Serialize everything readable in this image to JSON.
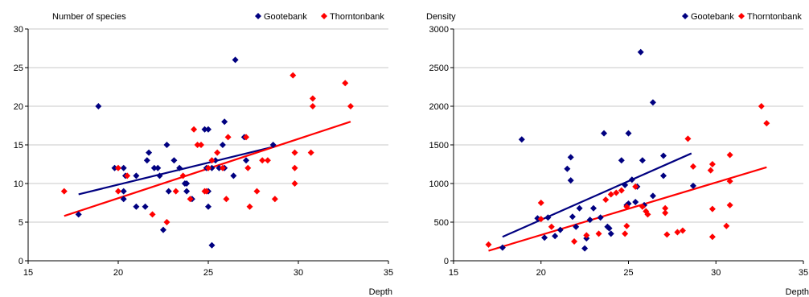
{
  "chart_data": [
    {
      "type": "scatter",
      "title": "Number of species",
      "xlabel": "Depth",
      "ylabel": "Number of species",
      "xlim": [
        15,
        35
      ],
      "ylim": [
        0,
        30
      ],
      "xticks": [
        15,
        20,
        25,
        30,
        35
      ],
      "yticks": [
        0,
        5,
        10,
        15,
        20,
        25,
        30
      ],
      "grid": "horizontal",
      "legend_position": "top-right",
      "series": [
        {
          "name": "Gootebank",
          "color": "#000080",
          "marker": "diamond",
          "points": [
            [
              17.8,
              6
            ],
            [
              18.9,
              20
            ],
            [
              19.8,
              12
            ],
            [
              20.3,
              12
            ],
            [
              20.3,
              9
            ],
            [
              20.3,
              8
            ],
            [
              20.4,
              11
            ],
            [
              21.0,
              11
            ],
            [
              21.0,
              7
            ],
            [
              21.5,
              7
            ],
            [
              21.6,
              13
            ],
            [
              21.7,
              14
            ],
            [
              22.0,
              12
            ],
            [
              22.2,
              12
            ],
            [
              22.3,
              11
            ],
            [
              22.5,
              4
            ],
            [
              22.7,
              15
            ],
            [
              22.8,
              9
            ],
            [
              23.1,
              13
            ],
            [
              23.4,
              12
            ],
            [
              23.7,
              10
            ],
            [
              23.8,
              9
            ],
            [
              23.8,
              10
            ],
            [
              24.1,
              8
            ],
            [
              24.8,
              17
            ],
            [
              25.0,
              17
            ],
            [
              24.9,
              12
            ],
            [
              25.0,
              7
            ],
            [
              25.2,
              12
            ],
            [
              25.4,
              13
            ],
            [
              25.6,
              12
            ],
            [
              25.8,
              15
            ],
            [
              25.9,
              18
            ],
            [
              25.9,
              12
            ],
            [
              26.5,
              26
            ],
            [
              26.4,
              11
            ],
            [
              27.0,
              16
            ],
            [
              27.1,
              13
            ],
            [
              28.6,
              15
            ],
            [
              25.2,
              2
            ],
            [
              25.0,
              9
            ]
          ],
          "trendline": [
            [
              17.8,
              8.6
            ],
            [
              28.7,
              14.8
            ]
          ]
        },
        {
          "name": "Thorntonbank",
          "color": "#ff0000",
          "marker": "diamond",
          "points": [
            [
              17.0,
              9
            ],
            [
              20.0,
              12
            ],
            [
              20.0,
              9
            ],
            [
              20.5,
              11
            ],
            [
              21.9,
              6
            ],
            [
              22.7,
              5
            ],
            [
              23.2,
              9
            ],
            [
              23.6,
              11
            ],
            [
              24.0,
              8
            ],
            [
              24.2,
              17
            ],
            [
              24.4,
              15
            ],
            [
              24.6,
              15
            ],
            [
              24.8,
              9
            ],
            [
              24.9,
              9
            ],
            [
              25.0,
              12
            ],
            [
              25.2,
              13
            ],
            [
              25.5,
              14
            ],
            [
              25.8,
              12
            ],
            [
              26.0,
              8
            ],
            [
              26.1,
              16
            ],
            [
              27.1,
              16
            ],
            [
              27.2,
              12
            ],
            [
              27.3,
              7
            ],
            [
              27.7,
              9
            ],
            [
              28.0,
              13
            ],
            [
              28.3,
              13
            ],
            [
              28.7,
              8
            ],
            [
              29.7,
              24
            ],
            [
              29.8,
              14
            ],
            [
              29.8,
              12
            ],
            [
              29.8,
              10
            ],
            [
              30.7,
              14
            ],
            [
              30.8,
              21
            ],
            [
              30.8,
              20
            ],
            [
              32.6,
              23
            ],
            [
              32.9,
              20
            ]
          ],
          "trendline": [
            [
              17.0,
              5.8
            ],
            [
              32.9,
              18.0
            ]
          ]
        }
      ]
    },
    {
      "type": "scatter",
      "title": "Density",
      "xlabel": "Depth",
      "ylabel": "Density",
      "xlim": [
        15,
        35
      ],
      "ylim": [
        0,
        3000
      ],
      "xticks": [
        15,
        20,
        25,
        30,
        35
      ],
      "yticks": [
        0,
        500,
        1000,
        1500,
        2000,
        2500,
        3000
      ],
      "grid": "horizontal",
      "legend_position": "top-right",
      "series": [
        {
          "name": "Gootebank",
          "color": "#000080",
          "marker": "diamond",
          "points": [
            [
              17.8,
              170
            ],
            [
              18.9,
              1570
            ],
            [
              19.8,
              550
            ],
            [
              20.2,
              300
            ],
            [
              20.4,
              560
            ],
            [
              20.8,
              320
            ],
            [
              21.1,
              400
            ],
            [
              21.5,
              1190
            ],
            [
              21.7,
              1340
            ],
            [
              21.7,
              1040
            ],
            [
              21.8,
              570
            ],
            [
              22.0,
              440
            ],
            [
              22.2,
              680
            ],
            [
              22.5,
              160
            ],
            [
              22.6,
              290
            ],
            [
              22.8,
              530
            ],
            [
              23.0,
              680
            ],
            [
              23.4,
              560
            ],
            [
              23.6,
              1650
            ],
            [
              23.8,
              440
            ],
            [
              23.9,
              420
            ],
            [
              24.0,
              350
            ],
            [
              24.6,
              1300
            ],
            [
              24.8,
              980
            ],
            [
              25.0,
              740
            ],
            [
              25.0,
              1650
            ],
            [
              25.2,
              1050
            ],
            [
              25.5,
              960
            ],
            [
              25.7,
              2700
            ],
            [
              25.8,
              1300
            ],
            [
              25.9,
              720
            ],
            [
              26.4,
              2050
            ],
            [
              26.4,
              840
            ],
            [
              27.0,
              1360
            ],
            [
              27.0,
              1100
            ],
            [
              28.7,
              970
            ],
            [
              24.9,
              720
            ],
            [
              25.4,
              760
            ]
          ],
          "trendline": [
            [
              17.8,
              310
            ],
            [
              28.6,
              1390
            ]
          ]
        },
        {
          "name": "Thorntonbank",
          "color": "#ff0000",
          "marker": "diamond",
          "points": [
            [
              17.0,
              210
            ],
            [
              20.0,
              750
            ],
            [
              20.0,
              540
            ],
            [
              20.6,
              440
            ],
            [
              21.9,
              250
            ],
            [
              22.6,
              330
            ],
            [
              23.3,
              350
            ],
            [
              23.7,
              790
            ],
            [
              24.0,
              860
            ],
            [
              24.3,
              880
            ],
            [
              24.6,
              910
            ],
            [
              24.9,
              700
            ],
            [
              24.8,
              350
            ],
            [
              24.9,
              450
            ],
            [
              25.4,
              960
            ],
            [
              25.8,
              700
            ],
            [
              26.0,
              640
            ],
            [
              26.1,
              600
            ],
            [
              27.1,
              680
            ],
            [
              27.2,
              340
            ],
            [
              27.1,
              620
            ],
            [
              27.8,
              370
            ],
            [
              28.1,
              390
            ],
            [
              28.4,
              1580
            ],
            [
              28.7,
              1220
            ],
            [
              29.7,
              1170
            ],
            [
              29.8,
              1250
            ],
            [
              29.8,
              670
            ],
            [
              29.8,
              310
            ],
            [
              30.6,
              450
            ],
            [
              30.8,
              720
            ],
            [
              30.8,
              1030
            ],
            [
              30.8,
              1370
            ],
            [
              32.6,
              2000
            ],
            [
              32.9,
              1780
            ]
          ],
          "trendline": [
            [
              17.0,
              130
            ],
            [
              32.9,
              1210
            ]
          ]
        }
      ]
    }
  ]
}
